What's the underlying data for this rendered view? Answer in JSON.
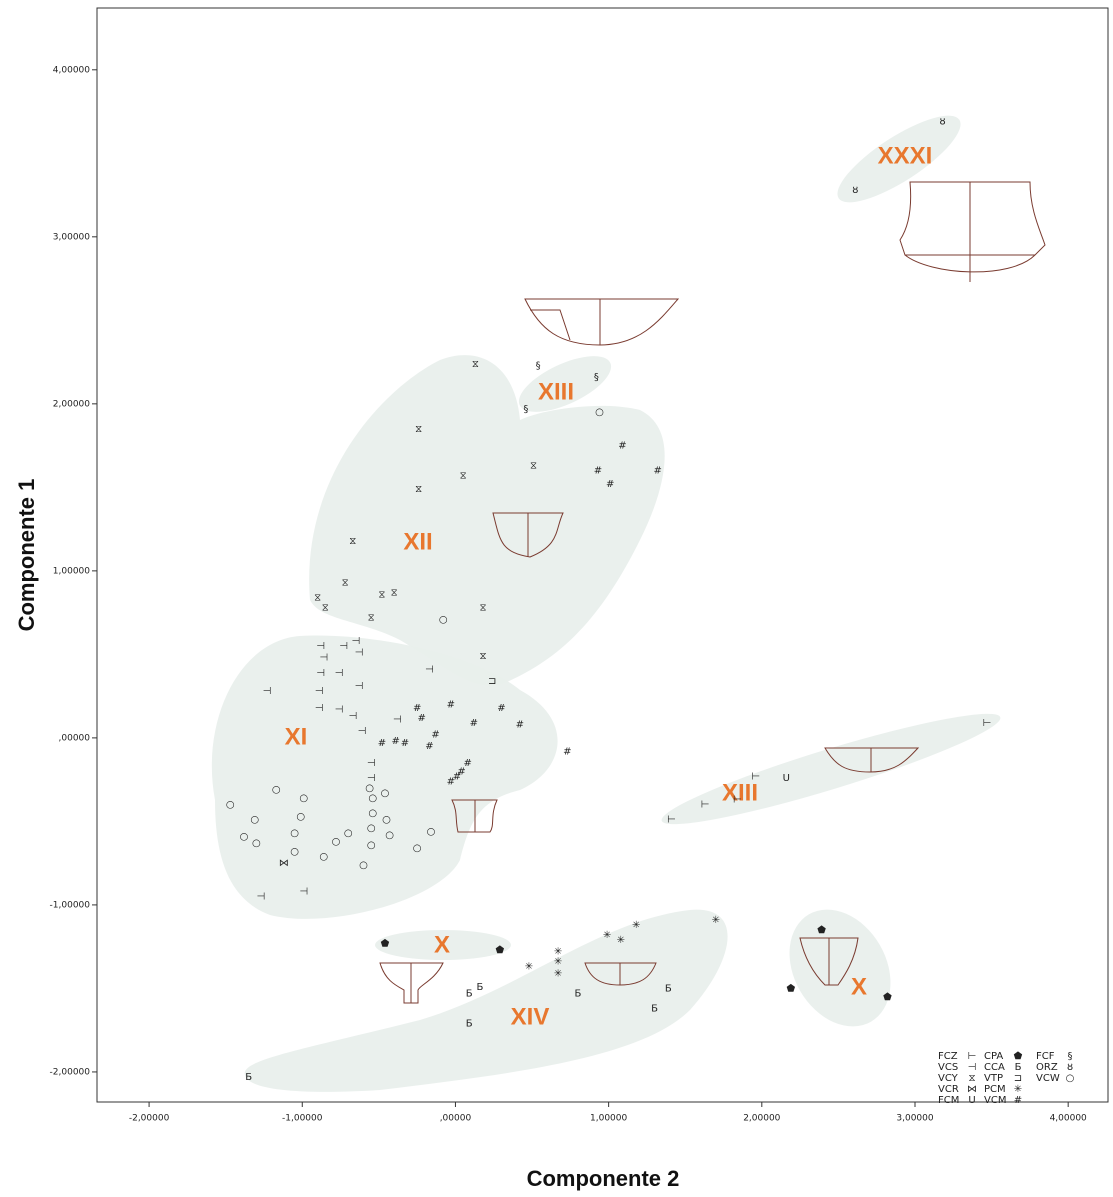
{
  "chart_data": {
    "type": "scatter",
    "x_label": "Componente 2",
    "y_label": "Componente 1",
    "xlim": [
      -2.34,
      4.26
    ],
    "ylim": [
      -2.18,
      4.37
    ],
    "xticks": [
      {
        "value": -2,
        "label": "-2,00000"
      },
      {
        "value": -1,
        "label": "-1,00000"
      },
      {
        "value": 0,
        "label": ",00000"
      },
      {
        "value": 1,
        "label": "1,00000"
      },
      {
        "value": 2,
        "label": "2,00000"
      },
      {
        "value": 3,
        "label": "3,00000"
      },
      {
        "value": 4,
        "label": "4,00000"
      }
    ],
    "yticks": [
      {
        "value": -2,
        "label": "-2,00000"
      },
      {
        "value": -1,
        "label": "-1,00000"
      },
      {
        "value": 0,
        "label": ",00000"
      },
      {
        "value": 1,
        "label": "1,00000"
      },
      {
        "value": 2,
        "label": "2,00000"
      },
      {
        "value": 3,
        "label": "3,00000"
      },
      {
        "value": 4,
        "label": "4,00000"
      }
    ],
    "annotations": [
      "XXXI",
      "XIII",
      "XII",
      "XI",
      "XIII",
      "X",
      "X",
      "XIV"
    ],
    "series": [
      {
        "name": "FCZ",
        "marker": "⊢",
        "color": "#222222",
        "x": [
          1.41,
          1.63,
          1.84,
          1.96,
          3.47
        ],
        "y": [
          -0.49,
          -0.4,
          -0.37,
          -0.23,
          0.09
        ]
      },
      {
        "name": "VCS",
        "marker": "⊣",
        "color": "#222222",
        "x": [
          -1.23,
          -0.88,
          -0.86,
          -0.88,
          -0.89,
          -0.89,
          -0.73,
          -0.65,
          -0.63,
          -0.76,
          -0.63,
          -0.76,
          -0.67,
          -0.61,
          -0.38,
          -0.17,
          -0.55,
          -0.55,
          -1.27,
          -0.99
        ],
        "y": [
          0.28,
          0.55,
          0.48,
          0.39,
          0.28,
          0.18,
          0.55,
          0.58,
          0.51,
          0.39,
          0.31,
          0.17,
          0.13,
          0.04,
          0.11,
          0.41,
          -0.15,
          -0.24,
          -0.95,
          -0.92
        ]
      },
      {
        "name": "VCY",
        "marker": "⧖",
        "color": "#222222",
        "x": [
          0.13,
          -0.24,
          0.05,
          0.51,
          -0.24,
          -0.67,
          -0.72,
          -0.9,
          -0.85,
          -0.48,
          -0.4,
          -0.55,
          0.18,
          0.18
        ],
        "y": [
          2.24,
          1.85,
          1.57,
          1.63,
          1.49,
          1.18,
          0.93,
          0.84,
          0.78,
          0.86,
          0.87,
          0.72,
          0.78,
          0.49
        ]
      },
      {
        "name": "VCR",
        "marker": "⋈",
        "color": "#222222",
        "x": [
          -1.12
        ],
        "y": [
          -0.75
        ]
      },
      {
        "name": "FCM",
        "marker": "Ս",
        "color": "#222222",
        "x": [
          2.16
        ],
        "y": [
          -0.24
        ]
      },
      {
        "name": "CPA",
        "marker": "⬟",
        "color": "#111111",
        "x": [
          -0.46,
          0.29,
          2.39,
          2.19,
          2.82
        ],
        "y": [
          -1.23,
          -1.27,
          -1.15,
          -1.5,
          -1.55
        ]
      },
      {
        "name": "CCA",
        "marker": "Б",
        "color": "#222222",
        "x": [
          -1.35,
          0.09,
          0.09,
          0.16,
          0.8,
          1.3,
          1.39
        ],
        "y": [
          -2.03,
          -1.71,
          -1.53,
          -1.49,
          -1.53,
          -1.62,
          -1.5
        ]
      },
      {
        "name": "VTP",
        "marker": "⊐",
        "color": "#222222",
        "x": [
          0.24
        ],
        "y": [
          0.34
        ]
      },
      {
        "name": "PCM",
        "marker": "✳",
        "color": "#222222",
        "x": [
          0.48,
          0.67,
          0.67,
          0.67,
          0.99,
          1.08,
          1.18,
          1.7
        ],
        "y": [
          -1.37,
          -1.28,
          -1.34,
          -1.41,
          -1.18,
          -1.21,
          -1.12,
          -1.09
        ]
      },
      {
        "name": "VCM",
        "marker": "#",
        "color": "#222222",
        "x": [
          1.09,
          0.93,
          1.01,
          1.32,
          -0.25,
          -0.22,
          -0.03,
          0.12,
          0.3,
          0.42,
          0.73,
          -0.48,
          -0.39,
          -0.33,
          -0.13,
          -0.17,
          0.08,
          0.04,
          0.01,
          -0.03
        ],
        "y": [
          1.75,
          1.6,
          1.52,
          1.6,
          0.18,
          0.12,
          0.2,
          0.09,
          0.18,
          0.08,
          -0.08,
          -0.03,
          -0.02,
          -0.03,
          0.02,
          -0.05,
          -0.15,
          -0.2,
          -0.23,
          -0.26
        ]
      },
      {
        "name": "FCF",
        "marker": "§",
        "color": "#222222",
        "x": [
          0.54,
          0.92,
          0.46
        ],
        "y": [
          2.23,
          2.16,
          1.97
        ]
      },
      {
        "name": "ORZ",
        "marker": "ȣ",
        "color": "#222222",
        "x": [
          3.18,
          2.61
        ],
        "y": [
          3.69,
          3.28
        ]
      },
      {
        "name": "VCW",
        "marker": "○",
        "color": "#222222",
        "x": [
          0.94,
          -0.08,
          -1.47,
          -1.17,
          -1.31,
          -1.38,
          -1.3,
          -0.99,
          -1.01,
          -1.05,
          -1.05,
          -0.86,
          -0.78,
          -0.7,
          -0.6,
          -0.56,
          -0.54,
          -0.54,
          -0.55,
          -0.55,
          -0.46,
          -0.45,
          -0.43,
          -0.25,
          -0.16
        ],
        "y": [
          1.95,
          0.71,
          -0.4,
          -0.31,
          -0.49,
          -0.59,
          -0.63,
          -0.36,
          -0.47,
          -0.57,
          -0.68,
          -0.71,
          -0.62,
          -0.57,
          -0.76,
          -0.3,
          -0.36,
          -0.45,
          -0.54,
          -0.64,
          -0.33,
          -0.49,
          -0.58,
          -0.66,
          -0.56
        ]
      }
    ]
  }
}
